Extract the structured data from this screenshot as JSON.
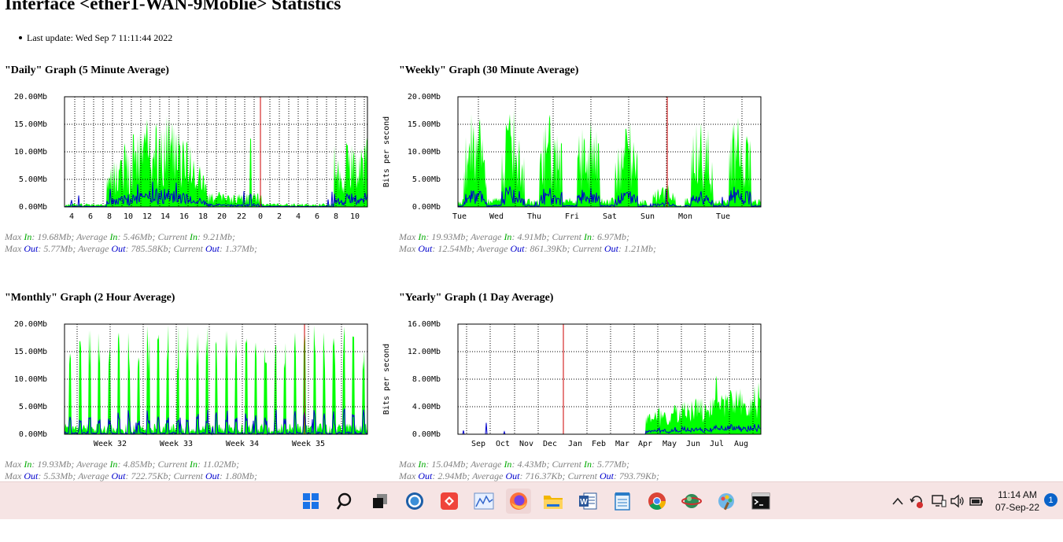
{
  "page": {
    "title": "Interface <ether1-WAN-9Moblie> Statistics",
    "last_update": "Last update: Wed Sep 7 11:11:44 2022"
  },
  "colors": {
    "in": "#00ff00",
    "out": "#0000cc",
    "marker": "#cc0000",
    "grid": "#000000"
  },
  "graphs": [
    {
      "title": "\"Daily\" Graph (5 Minute Average)",
      "ylabel": "",
      "yticks": [
        "20.00Mb",
        "15.00Mb",
        "10.00Mb",
        "5.00Mb",
        "0.00Mb"
      ],
      "xticks": [
        "4",
        "6",
        "8",
        "10",
        "12",
        "14",
        "16",
        "18",
        "20",
        "22",
        "0",
        "2",
        "4",
        "6",
        "8",
        "10"
      ],
      "stats": {
        "max_in": "19.68Mb",
        "avg_in": "5.46Mb",
        "cur_in": "9.21Mb",
        "max_out": "5.77Mb",
        "avg_out": "785.58Kb",
        "cur_out": "1.37Mb"
      }
    },
    {
      "title": "\"Weekly\" Graph (30 Minute Average)",
      "ylabel": "Bits per second",
      "yticks": [
        "20.00Mb",
        "15.00Mb",
        "10.00Mb",
        "5.00Mb",
        "0.00Mb"
      ],
      "xticks": [
        "Tue",
        "Wed",
        "Thu",
        "Fri",
        "Sat",
        "Sun",
        "Mon",
        "Tue"
      ],
      "stats": {
        "max_in": "19.93Mb",
        "avg_in": "4.91Mb",
        "cur_in": "6.97Mb",
        "max_out": "12.54Mb",
        "avg_out": "861.39Kb",
        "cur_out": "1.21Mb"
      }
    },
    {
      "title": "\"Monthly\" Graph (2 Hour Average)",
      "ylabel": "",
      "yticks": [
        "20.00Mb",
        "15.00Mb",
        "10.00Mb",
        "5.00Mb",
        "0.00Mb"
      ],
      "xticks": [
        "Week 32",
        "Week 33",
        "Week 34",
        "Week 35"
      ],
      "stats": {
        "max_in": "19.93Mb",
        "avg_in": "4.85Mb",
        "cur_in": "11.02Mb",
        "max_out": "5.53Mb",
        "avg_out": "722.75Kb",
        "cur_out": "1.80Mb"
      }
    },
    {
      "title": "\"Yearly\" Graph (1 Day Average)",
      "ylabel": "Bits per second",
      "yticks": [
        "16.00Mb",
        "12.00Mb",
        "8.00Mb",
        "4.00Mb",
        "0.00Mb"
      ],
      "xticks": [
        "Sep",
        "Oct",
        "Nov",
        "Dec",
        "Jan",
        "Feb",
        "Mar",
        "Apr",
        "May",
        "Jun",
        "Jul",
        "Aug"
      ],
      "stats": {
        "max_in": "15.04Mb",
        "avg_in": "4.43Mb",
        "cur_in": "5.77Mb",
        "max_out": "2.94Mb",
        "avg_out": "716.37Kb",
        "cur_out": "793.79Kb"
      }
    }
  ],
  "stat_labels": {
    "max": "Max",
    "average": "Average",
    "current": "Current",
    "in": "In",
    "out": "Out"
  },
  "taskbar": {
    "apps": [
      {
        "name": "start-icon"
      },
      {
        "name": "search-icon"
      },
      {
        "name": "task-view-icon"
      },
      {
        "name": "browser-swirl-icon"
      },
      {
        "name": "anydesk-icon"
      },
      {
        "name": "chart-app-icon"
      },
      {
        "name": "firefox-icon"
      },
      {
        "name": "file-explorer-icon"
      },
      {
        "name": "word-icon"
      },
      {
        "name": "notepad-icon"
      },
      {
        "name": "chrome-icon"
      },
      {
        "name": "network-globe-icon"
      },
      {
        "name": "paint-icon"
      },
      {
        "name": "terminal-icon"
      }
    ],
    "time": "11:14 AM",
    "date": "07-Sep-22",
    "notifications": "1"
  }
}
